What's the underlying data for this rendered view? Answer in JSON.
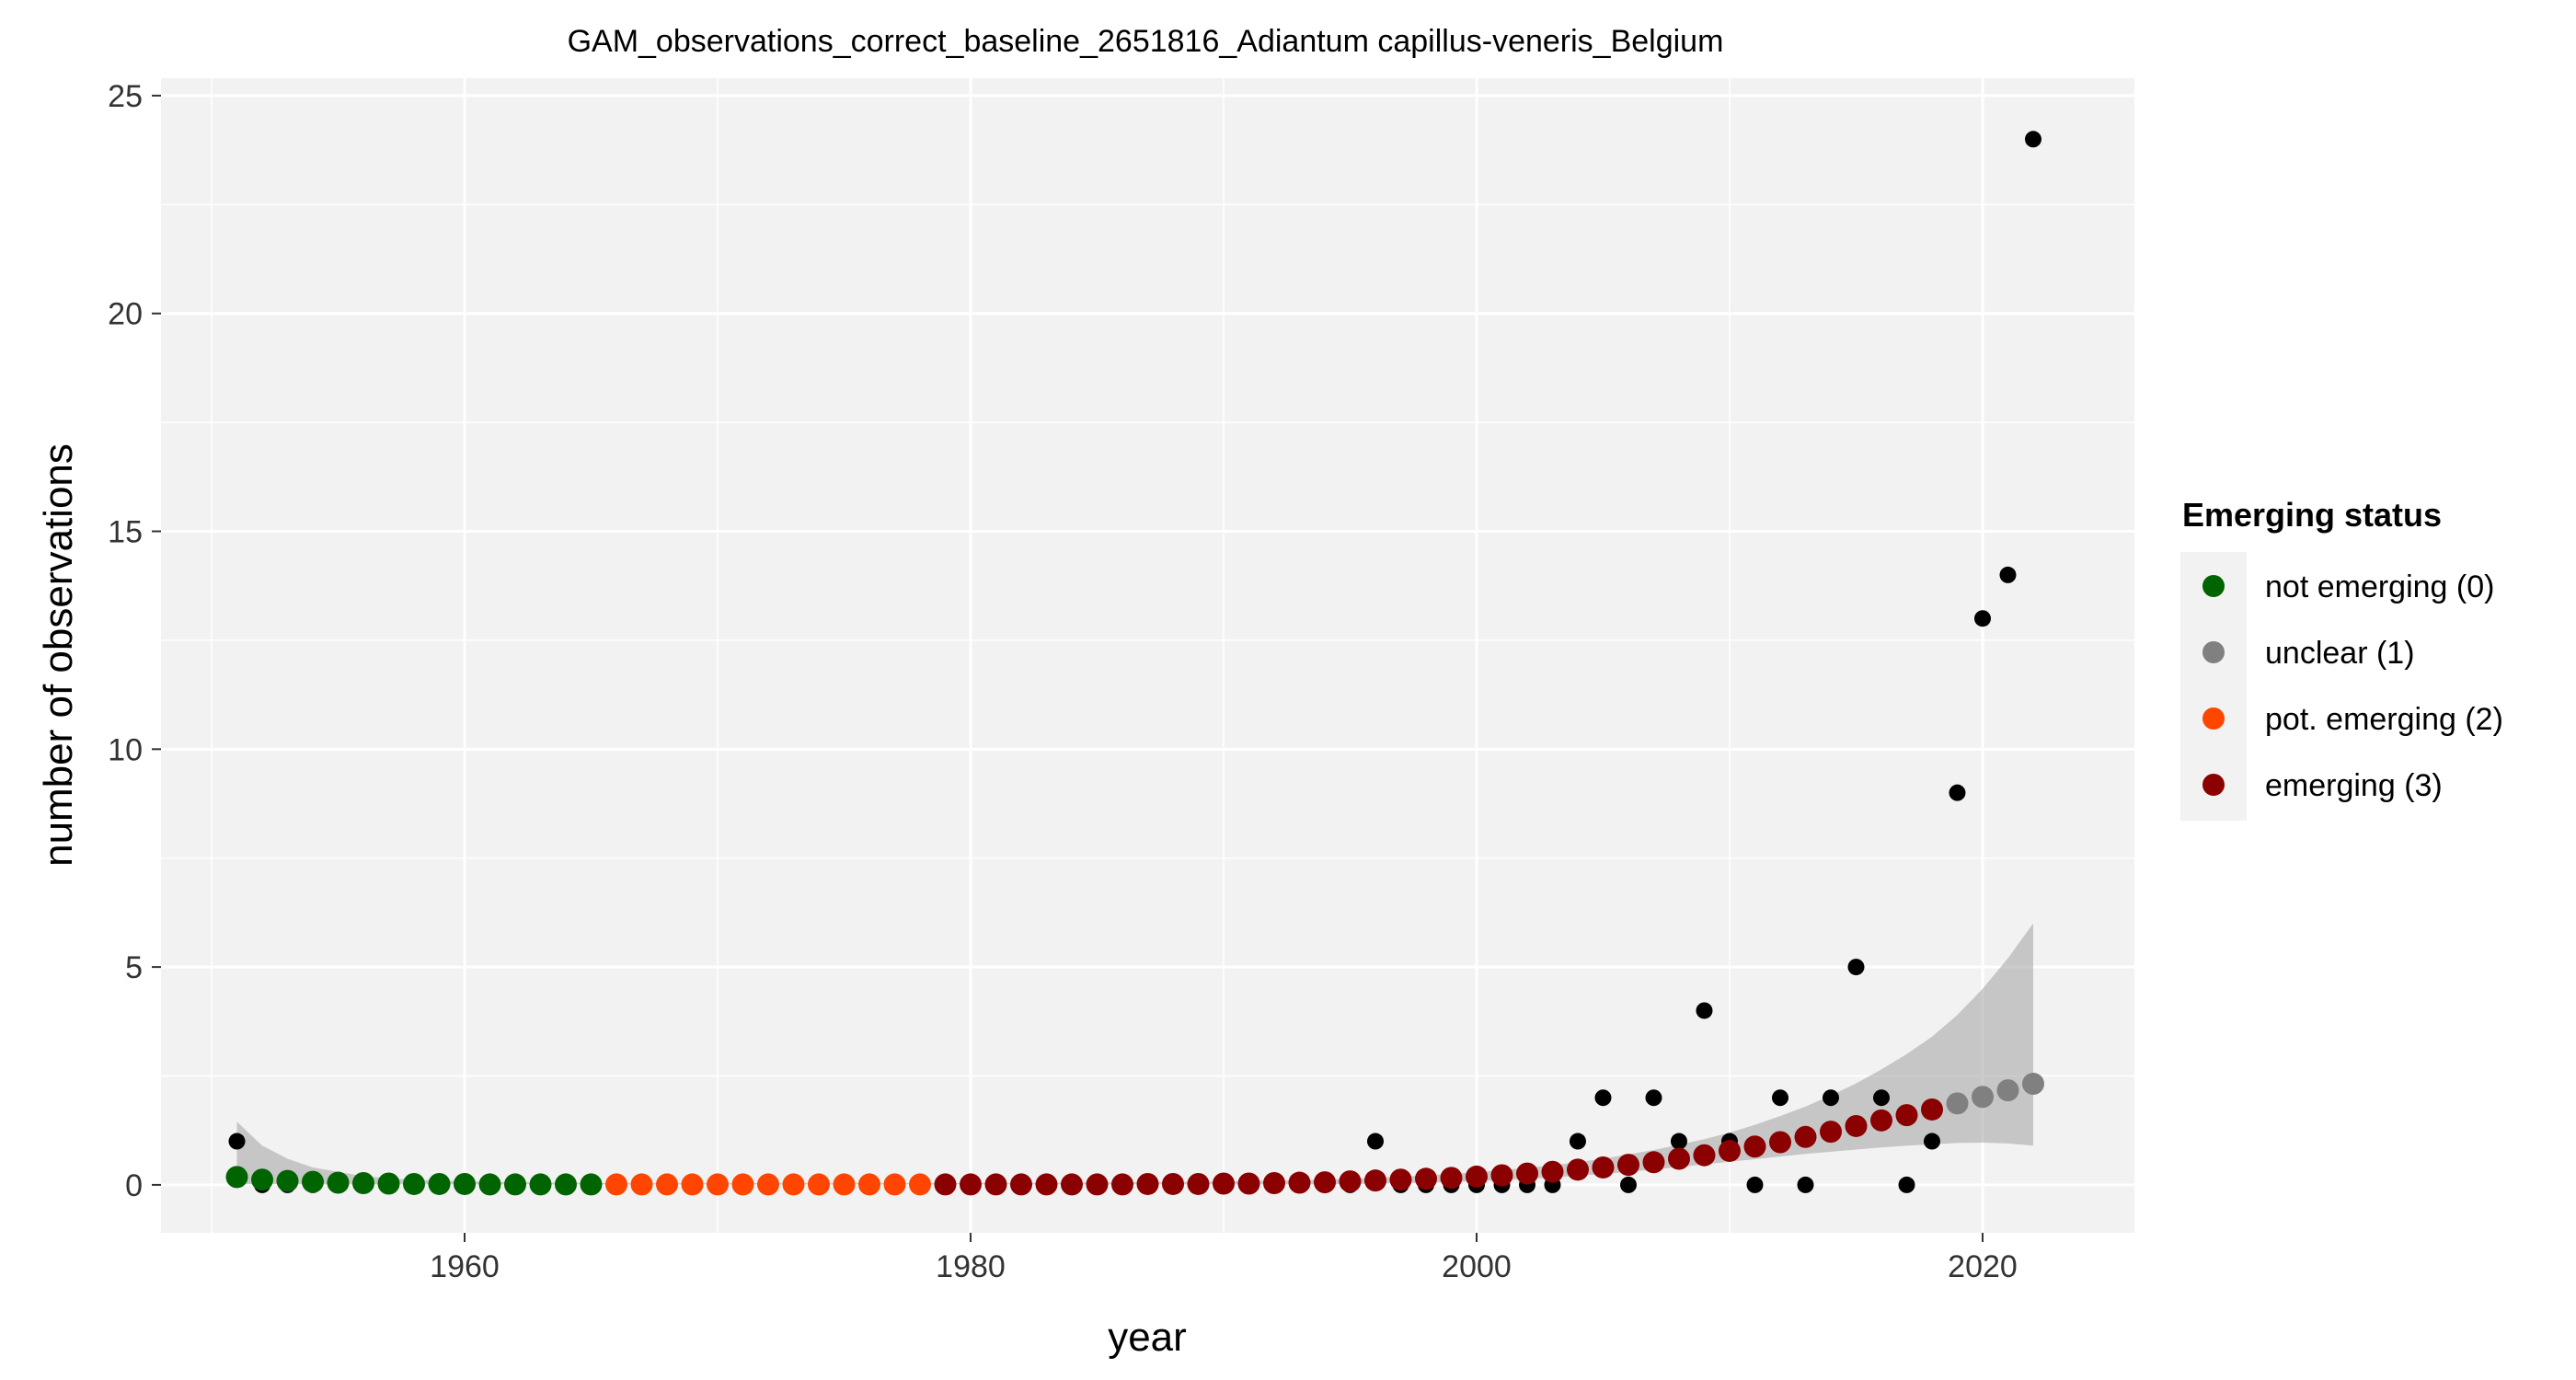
{
  "chart_data": {
    "type": "scatter",
    "title": "GAM_observations_correct_baseline_2651816_Adiantum capillus-veneris_Belgium",
    "xlabel": "year",
    "ylabel": "number of observations",
    "xlim": [
      1948,
      2026
    ],
    "ylim": [
      -1.1,
      25.4
    ],
    "x_ticks": [
      1960,
      1980,
      2000,
      2020
    ],
    "y_ticks": [
      0,
      5,
      10,
      15,
      20,
      25
    ],
    "grid": true,
    "legend": {
      "title": "Emerging status",
      "placement": "right",
      "entries": [
        {
          "label": "not emerging (0)",
          "color": "#006400"
        },
        {
          "label": "unclear (1)",
          "color": "#808080"
        },
        {
          "label": "pot. emerging (2)",
          "color": "#FF4500"
        },
        {
          "label": "emerging (3)",
          "color": "#8B0000"
        }
      ]
    },
    "observations": {
      "color": "#000000",
      "x": [
        1951,
        1952,
        1953,
        1954,
        1955,
        1956,
        1957,
        1958,
        1959,
        1960,
        1961,
        1962,
        1963,
        1964,
        1965,
        1966,
        1967,
        1968,
        1969,
        1970,
        1971,
        1972,
        1973,
        1974,
        1975,
        1976,
        1977,
        1978,
        1979,
        1980,
        1981,
        1982,
        1983,
        1984,
        1985,
        1986,
        1987,
        1988,
        1989,
        1990,
        1991,
        1992,
        1993,
        1994,
        1995,
        1996,
        1997,
        1998,
        1999,
        2000,
        2001,
        2002,
        2003,
        2004,
        2005,
        2006,
        2007,
        2008,
        2009,
        2010,
        2011,
        2012,
        2013,
        2014,
        2015,
        2016,
        2017,
        2018,
        2019,
        2020,
        2021,
        2022
      ],
      "y": [
        1,
        0,
        0,
        0,
        0,
        0,
        0,
        0,
        0,
        0,
        0,
        0,
        0,
        0,
        0,
        0,
        0,
        0,
        0,
        0,
        0,
        0,
        0,
        0,
        0,
        0,
        0,
        0,
        0,
        0,
        0,
        0,
        0,
        0,
        0,
        0,
        0,
        0,
        0,
        0,
        0,
        0,
        0,
        0,
        0,
        1,
        0,
        0,
        0,
        0,
        0,
        0,
        0,
        1,
        2,
        0,
        2,
        1,
        4,
        1,
        0,
        2,
        0,
        2,
        5,
        2,
        0,
        1,
        9,
        13,
        14,
        24
      ]
    },
    "gam_fit": {
      "x": [
        1951,
        1952,
        1953,
        1954,
        1955,
        1956,
        1957,
        1958,
        1959,
        1960,
        1961,
        1962,
        1963,
        1964,
        1965,
        1966,
        1967,
        1968,
        1969,
        1970,
        1971,
        1972,
        1973,
        1974,
        1975,
        1976,
        1977,
        1978,
        1979,
        1980,
        1981,
        1982,
        1983,
        1984,
        1985,
        1986,
        1987,
        1988,
        1989,
        1990,
        1991,
        1992,
        1993,
        1994,
        1995,
        1996,
        1997,
        1998,
        1999,
        2000,
        2001,
        2002,
        2003,
        2004,
        2005,
        2006,
        2007,
        2008,
        2009,
        2010,
        2011,
        2012,
        2013,
        2014,
        2015,
        2016,
        2017,
        2018,
        2019,
        2020,
        2021,
        2022
      ],
      "y": [
        0.18,
        0.12,
        0.09,
        0.07,
        0.05,
        0.04,
        0.03,
        0.02,
        0.02,
        0.02,
        0.01,
        0.01,
        0.01,
        0.01,
        0.01,
        0.01,
        0.01,
        0.01,
        0.01,
        0.01,
        0.01,
        0.01,
        0.01,
        0.01,
        0.01,
        0.01,
        0.01,
        0.01,
        0.01,
        0.01,
        0.01,
        0.01,
        0.01,
        0.01,
        0.01,
        0.01,
        0.02,
        0.02,
        0.02,
        0.03,
        0.03,
        0.04,
        0.05,
        0.06,
        0.08,
        0.1,
        0.12,
        0.14,
        0.16,
        0.19,
        0.22,
        0.26,
        0.3,
        0.35,
        0.4,
        0.46,
        0.52,
        0.6,
        0.68,
        0.78,
        0.88,
        0.98,
        1.1,
        1.22,
        1.35,
        1.48,
        1.6,
        1.73,
        1.87,
        2.02,
        2.17,
        2.32
      ],
      "status": [
        0,
        0,
        0,
        0,
        0,
        0,
        0,
        0,
        0,
        0,
        0,
        0,
        0,
        0,
        0,
        2,
        2,
        2,
        2,
        2,
        2,
        2,
        2,
        2,
        2,
        2,
        2,
        2,
        3,
        3,
        3,
        3,
        3,
        3,
        3,
        3,
        3,
        3,
        3,
        3,
        3,
        3,
        3,
        3,
        3,
        3,
        3,
        3,
        3,
        3,
        3,
        3,
        3,
        3,
        3,
        3,
        3,
        3,
        3,
        3,
        3,
        3,
        3,
        3,
        3,
        3,
        3,
        3,
        1,
        1,
        1,
        1
      ],
      "ci_low": [
        0.02,
        0.02,
        0.02,
        0.01,
        0.01,
        0.01,
        0.01,
        0.01,
        0.01,
        0.01,
        0.01,
        0.01,
        0.01,
        0.01,
        0.01,
        0.01,
        0.01,
        0.01,
        0.01,
        0.01,
        0.01,
        0.01,
        0.01,
        0.01,
        0.01,
        0.01,
        0.01,
        0.01,
        0.01,
        0.01,
        0.01,
        0.01,
        0.01,
        0.01,
        0.01,
        0.01,
        0.01,
        0.01,
        0.01,
        0.01,
        0.01,
        0.01,
        0.01,
        0.01,
        0.02,
        0.03,
        0.04,
        0.05,
        0.07,
        0.09,
        0.11,
        0.14,
        0.17,
        0.21,
        0.25,
        0.3,
        0.35,
        0.41,
        0.47,
        0.53,
        0.59,
        0.65,
        0.71,
        0.76,
        0.81,
        0.86,
        0.9,
        0.93,
        0.96,
        0.97,
        0.95,
        0.9
      ],
      "ci_high": [
        1.45,
        0.9,
        0.6,
        0.4,
        0.3,
        0.2,
        0.15,
        0.12,
        0.1,
        0.08,
        0.07,
        0.06,
        0.05,
        0.05,
        0.04,
        0.04,
        0.04,
        0.04,
        0.04,
        0.04,
        0.04,
        0.04,
        0.04,
        0.04,
        0.04,
        0.04,
        0.04,
        0.04,
        0.04,
        0.04,
        0.04,
        0.04,
        0.05,
        0.05,
        0.05,
        0.06,
        0.06,
        0.07,
        0.07,
        0.08,
        0.09,
        0.1,
        0.11,
        0.12,
        0.14,
        0.16,
        0.19,
        0.22,
        0.25,
        0.29,
        0.34,
        0.39,
        0.45,
        0.52,
        0.6,
        0.7,
        0.8,
        0.92,
        1.05,
        1.2,
        1.38,
        1.58,
        1.8,
        2.05,
        2.33,
        2.65,
        3.0,
        3.4,
        3.9,
        4.5,
        5.2,
        6.0
      ]
    }
  }
}
